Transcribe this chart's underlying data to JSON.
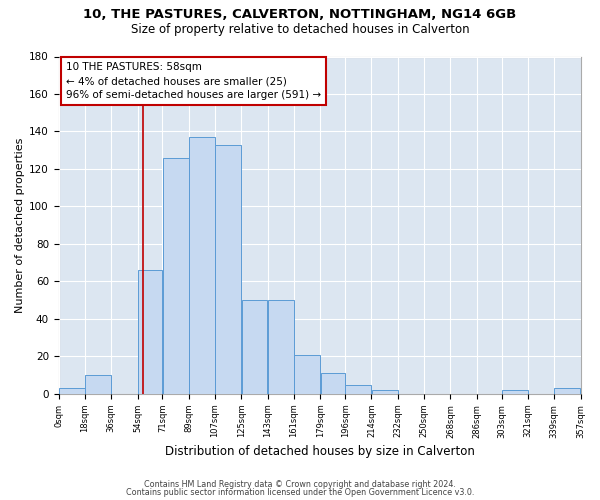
{
  "title": "10, THE PASTURES, CALVERTON, NOTTINGHAM, NG14 6GB",
  "subtitle": "Size of property relative to detached houses in Calverton",
  "xlabel": "Distribution of detached houses by size in Calverton",
  "ylabel": "Number of detached properties",
  "bar_left_edges": [
    0,
    18,
    36,
    54,
    71,
    89,
    107,
    125,
    143,
    161,
    179,
    196,
    214,
    232,
    250,
    268,
    286,
    303,
    321,
    339
  ],
  "bar_widths": [
    18,
    18,
    18,
    17,
    18,
    18,
    18,
    18,
    18,
    18,
    17,
    18,
    18,
    18,
    18,
    18,
    17,
    18,
    18,
    18
  ],
  "bar_heights": [
    3,
    10,
    0,
    66,
    126,
    137,
    133,
    50,
    50,
    21,
    11,
    5,
    2,
    0,
    0,
    0,
    0,
    2,
    0,
    3
  ],
  "tick_labels": [
    "0sqm",
    "18sqm",
    "36sqm",
    "54sqm",
    "71sqm",
    "89sqm",
    "107sqm",
    "125sqm",
    "143sqm",
    "161sqm",
    "179sqm",
    "196sqm",
    "214sqm",
    "232sqm",
    "250sqm",
    "268sqm",
    "286sqm",
    "303sqm",
    "321sqm",
    "339sqm",
    "357sqm"
  ],
  "tick_positions": [
    0,
    18,
    36,
    54,
    71,
    89,
    107,
    125,
    143,
    161,
    179,
    196,
    214,
    232,
    250,
    268,
    286,
    303,
    321,
    339,
    357
  ],
  "bar_color": "#c6d9f1",
  "bar_edge_color": "#5b9bd5",
  "grid_color": "#ffffff",
  "bg_color": "#dce6f1",
  "property_line_x": 58,
  "annotation_line1": "10 THE PASTURES: 58sqm",
  "annotation_line2": "← 4% of detached houses are smaller (25)",
  "annotation_line3": "96% of semi-detached houses are larger (591) →",
  "annotation_box_color": "#ffffff",
  "annotation_border_color": "#c00000",
  "ylim": [
    0,
    180
  ],
  "xlim": [
    0,
    357
  ],
  "yticks": [
    0,
    20,
    40,
    60,
    80,
    100,
    120,
    140,
    160,
    180
  ],
  "footer1": "Contains HM Land Registry data © Crown copyright and database right 2024.",
  "footer2": "Contains public sector information licensed under the Open Government Licence v3.0."
}
